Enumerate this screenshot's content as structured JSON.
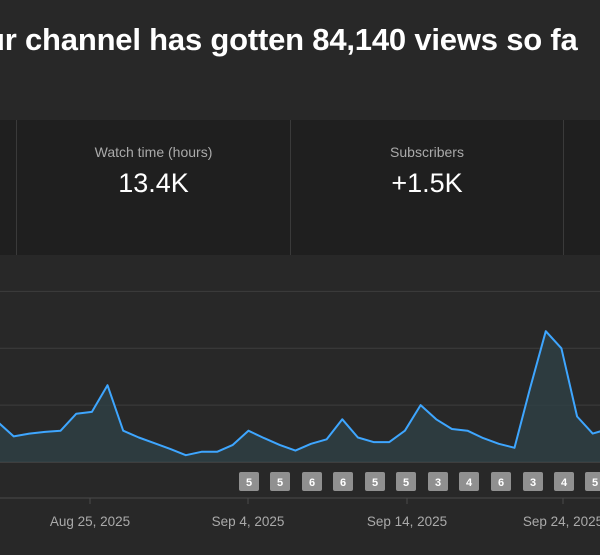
{
  "headline": "ur channel has gotten 84,140 views so fa",
  "stats": {
    "watch_time_label": "Watch time (hours)",
    "watch_time_value": "13.4K",
    "subscribers_label": "Subscribers",
    "subscribers_value": "+1.5K"
  },
  "colors": {
    "background": "#282828",
    "card_background": "#1f1f1f",
    "line": "#3ea6ff",
    "badge": "#909090"
  },
  "chart_data": {
    "type": "area",
    "grid": true,
    "x_tick_labels": [
      "Aug 25, 2025",
      "Sep 4, 2025",
      "Sep 14, 2025",
      "Sep 24, 2025"
    ],
    "series": [
      {
        "values": [
          0.7,
          0.45,
          0.5,
          0.53,
          0.55,
          0.85,
          0.88,
          1.35,
          0.55,
          0.43,
          0.33,
          0.23,
          0.12,
          0.18,
          0.18,
          0.3,
          0.55,
          0.42,
          0.3,
          0.2,
          0.32,
          0.4,
          0.75,
          0.43,
          0.35,
          0.35,
          0.55,
          1.0,
          0.75,
          0.58,
          0.55,
          0.42,
          0.32,
          0.25,
          1.3,
          2.3,
          2.0,
          0.8,
          0.5,
          0.58,
          0.38,
          0.35
        ]
      }
    ],
    "ylim": [
      0,
      3.2
    ],
    "badges": [
      "5",
      "5",
      "6",
      "6",
      "5",
      "5",
      "3",
      "4",
      "6",
      "3",
      "4",
      "5"
    ]
  }
}
